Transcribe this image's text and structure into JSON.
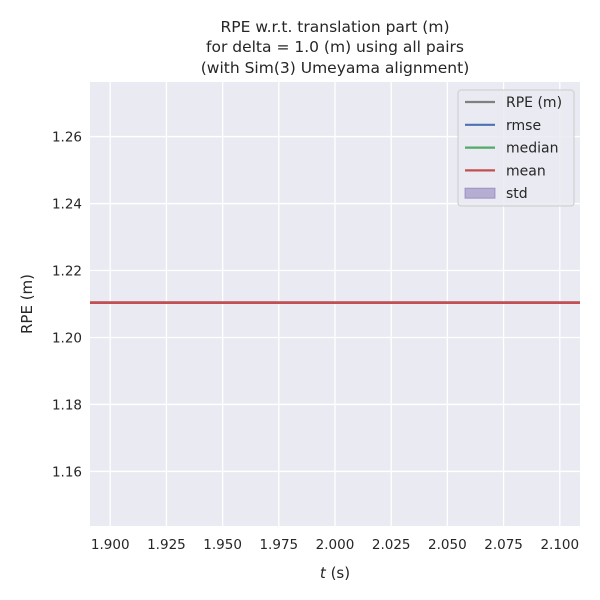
{
  "chart_data": {
    "type": "line",
    "title": [
      "RPE w.r.t. translation part (m)",
      "for delta = 1.0 (m) using all pairs",
      "(with Sim(3) Umeyama alignment)"
    ],
    "xlabel_var": "t",
    "xlabel_unit": " (s)",
    "ylabel": "RPE (m)",
    "xlim": [
      1.891,
      2.109
    ],
    "ylim": [
      1.1437,
      1.2763
    ],
    "x_ticks": [
      1.9,
      1.925,
      1.95,
      1.975,
      2.0,
      2.025,
      2.05,
      2.075,
      2.1
    ],
    "x_tick_labels": [
      "1.900",
      "1.925",
      "1.950",
      "1.975",
      "2.000",
      "2.025",
      "2.050",
      "2.075",
      "2.100"
    ],
    "y_ticks": [
      1.16,
      1.18,
      1.2,
      1.22,
      1.24,
      1.26
    ],
    "y_tick_labels": [
      "1.16",
      "1.18",
      "1.20",
      "1.22",
      "1.24",
      "1.26"
    ],
    "grid": true,
    "legend_position": "top-right",
    "legend": [
      {
        "label": "RPE (m)",
        "kind": "line",
        "color": "#808080"
      },
      {
        "label": "rmse",
        "kind": "line",
        "color": "#4c72b0"
      },
      {
        "label": "median",
        "kind": "line",
        "color": "#55a868"
      },
      {
        "label": "mean",
        "kind": "line",
        "color": "#c44e52"
      },
      {
        "label": "std",
        "kind": "patch",
        "color": "#8172b2"
      }
    ],
    "series": [
      {
        "name": "RPE (m)",
        "x": [
          2.0
        ],
        "y": [
          1.2104
        ],
        "color": "#808080"
      },
      {
        "name": "rmse",
        "value": 1.2104,
        "color": "#4c72b0"
      },
      {
        "name": "median",
        "value": 1.2104,
        "color": "#55a868"
      },
      {
        "name": "mean",
        "value": 1.2104,
        "color": "#c44e52"
      },
      {
        "name": "std",
        "value": 0.0,
        "color": "#8172b2"
      }
    ],
    "colors": {
      "plot_background": "#eaeaf2",
      "grid": "#ffffff"
    }
  }
}
